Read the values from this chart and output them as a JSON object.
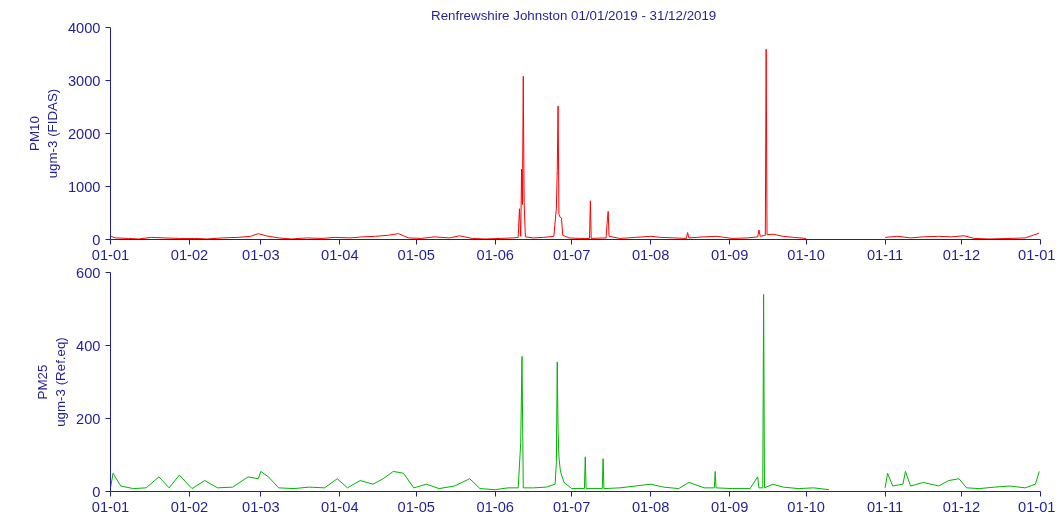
{
  "chart_data": [
    {
      "type": "line",
      "title": "Renfrewshire Johnston  01/01/2019 - 31/12/2019",
      "ylabel": "PM10\nugm-3 (FIDAS)",
      "xlim": [
        "2019-01-01",
        "2020-01-01"
      ],
      "ylim": [
        0,
        4000
      ],
      "yticks": [
        0,
        1000,
        2000,
        3000,
        4000
      ],
      "grid": false,
      "xticks": [
        {
          "value": "2019-01-01",
          "label": "01-01"
        },
        {
          "value": "2019-02-01",
          "label": "01-02"
        },
        {
          "value": "2019-03-01",
          "label": "01-03"
        },
        {
          "value": "2019-04-01",
          "label": "01-04"
        },
        {
          "value": "2019-05-01",
          "label": "01-05"
        },
        {
          "value": "2019-06-01",
          "label": "01-06"
        },
        {
          "value": "2019-07-01",
          "label": "01-07"
        },
        {
          "value": "2019-08-01",
          "label": "01-08"
        },
        {
          "value": "2019-09-01",
          "label": "01-09"
        },
        {
          "value": "2019-10-01",
          "label": "01-10"
        },
        {
          "value": "2019-11-01",
          "label": "01-11"
        },
        {
          "value": "2019-12-01",
          "label": "01-12"
        },
        {
          "value": "2020-01-01",
          "label": "01-01"
        }
      ],
      "series": [
        {
          "color": "#ff0000",
          "x": [
            "2019-01-01",
            "2019-01-03",
            "2019-01-08",
            "2019-01-12",
            "2019-01-17",
            "2019-01-22",
            "2019-01-28",
            "2019-02-03",
            "2019-02-08",
            "2019-02-14",
            "2019-02-20",
            "2019-02-25",
            "2019-02-28",
            "2019-03-03",
            "2019-03-08",
            "2019-03-13",
            "2019-03-19",
            "2019-03-25",
            "2019-03-30",
            "2019-04-05",
            "2019-04-10",
            "2019-04-15",
            "2019-04-20",
            "2019-04-24",
            "2019-04-28",
            "2019-05-03",
            "2019-05-08",
            "2019-05-14",
            "2019-05-18",
            "2019-05-23",
            "2019-05-28",
            "2019-06-03",
            "2019-06-08",
            "2019-06-10T00:00",
            "2019-06-10T12:00",
            "2019-06-11T00:00",
            "2019-06-11T08:00",
            "2019-06-11T16:00",
            "2019-06-12T00:00",
            "2019-06-12T08:00",
            "2019-06-12T20:00",
            "2019-06-16",
            "2019-06-20",
            "2019-06-24",
            "2019-06-25T00:00",
            "2019-06-25T08:00",
            "2019-06-25T16:00",
            "2019-06-26T00:00",
            "2019-06-26T12:00",
            "2019-06-27T00:00",
            "2019-06-27T12:00",
            "2019-06-30",
            "2019-07-04",
            "2019-07-08T00:00",
            "2019-07-08T08:00",
            "2019-07-08T16:00",
            "2019-07-14T12:00",
            "2019-07-15T00:00",
            "2019-07-15T08:00",
            "2019-07-15T16:00",
            "2019-07-20",
            "2019-07-26",
            "2019-08-01",
            "2019-08-05",
            "2019-08-10",
            "2019-08-15T00:00",
            "2019-08-15T12:00",
            "2019-08-16",
            "2019-08-22",
            "2019-08-27",
            "2019-09-02",
            "2019-09-08",
            "2019-09-12T00:00",
            "2019-09-12T12:00",
            "2019-09-13",
            "2019-09-15T00:00",
            "2019-09-15T08:00",
            "2019-09-15T16:00",
            "2019-09-18",
            "2019-09-22",
            "2019-09-26",
            "2019-10-01",
            "2019-10-03",
            "2019-10-30",
            "2019-11-01",
            "2019-11-06",
            "2019-11-11",
            "2019-11-16",
            "2019-11-22",
            "2019-11-27",
            "2019-12-02",
            "2019-12-06",
            "2019-12-12",
            "2019-12-20",
            "2019-12-26",
            "2019-12-31T12:00"
          ],
          "values": [
            60,
            30,
            20,
            10,
            40,
            30,
            20,
            20,
            10,
            30,
            40,
            60,
            110,
            70,
            30,
            10,
            30,
            20,
            40,
            30,
            50,
            60,
            80,
            110,
            30,
            20,
            50,
            30,
            70,
            20,
            10,
            20,
            30,
            40,
            580,
            60,
            1330,
            660,
            3080,
            700,
            50,
            30,
            40,
            60,
            590,
            1300,
            2520,
            470,
            420,
            400,
            80,
            30,
            20,
            20,
            730,
            20,
            30,
            370,
            530,
            60,
            20,
            40,
            60,
            40,
            30,
            20,
            130,
            30,
            50,
            60,
            20,
            30,
            50,
            180,
            60,
            80,
            3590,
            90,
            100,
            60,
            40,
            20,
            null,
            null,
            40,
            60,
            30,
            50,
            60,
            50,
            70,
            20,
            10,
            20,
            30,
            120
          ]
        }
      ]
    },
    {
      "type": "line",
      "ylabel": "PM25\nugm-3 (Ref.eq)",
      "xlim": [
        "2019-01-01",
        "2020-01-01"
      ],
      "ylim": [
        0,
        600
      ],
      "yticks": [
        0,
        200,
        400,
        600
      ],
      "grid": false,
      "xticks": [
        {
          "value": "2019-01-01",
          "label": "01-01"
        },
        {
          "value": "2019-02-01",
          "label": "01-02"
        },
        {
          "value": "2019-03-01",
          "label": "01-03"
        },
        {
          "value": "2019-04-01",
          "label": "01-04"
        },
        {
          "value": "2019-05-01",
          "label": "01-05"
        },
        {
          "value": "2019-06-01",
          "label": "01-06"
        },
        {
          "value": "2019-07-01",
          "label": "01-07"
        },
        {
          "value": "2019-08-01",
          "label": "01-08"
        },
        {
          "value": "2019-09-01",
          "label": "01-09"
        },
        {
          "value": "2019-10-01",
          "label": "01-10"
        },
        {
          "value": "2019-11-01",
          "label": "01-11"
        },
        {
          "value": "2019-12-01",
          "label": "01-12"
        },
        {
          "value": "2020-01-01",
          "label": "01-01"
        }
      ],
      "series": [
        {
          "color": "#00b400",
          "x": [
            "2019-01-01",
            "2019-01-02",
            "2019-01-05",
            "2019-01-10",
            "2019-01-15",
            "2019-01-20",
            "2019-01-24",
            "2019-01-28",
            "2019-02-02",
            "2019-02-07",
            "2019-02-12",
            "2019-02-18",
            "2019-02-24",
            "2019-02-28",
            "2019-03-01",
            "2019-03-04",
            "2019-03-08",
            "2019-03-14",
            "2019-03-20",
            "2019-03-26",
            "2019-03-31",
            "2019-04-04",
            "2019-04-09",
            "2019-04-14",
            "2019-04-18",
            "2019-04-22",
            "2019-04-26",
            "2019-04-30",
            "2019-05-05",
            "2019-05-10",
            "2019-05-16",
            "2019-05-22",
            "2019-05-26",
            "2019-06-01",
            "2019-06-06",
            "2019-06-10T00:00",
            "2019-06-10T12:00",
            "2019-06-11T00:00",
            "2019-06-11T12:00",
            "2019-06-12T00:00",
            "2019-06-16",
            "2019-06-21",
            "2019-06-24T12:00",
            "2019-06-25T00:00",
            "2019-06-25T08:00",
            "2019-06-25T16:00",
            "2019-06-26T00:00",
            "2019-06-26T12:00",
            "2019-06-27T00:00",
            "2019-06-28",
            "2019-07-01",
            "2019-07-06T00:00",
            "2019-07-06T08:00",
            "2019-07-06T16:00",
            "2019-07-13T00:00",
            "2019-07-13T08:00",
            "2019-07-13T16:00",
            "2019-07-20",
            "2019-07-26",
            "2019-08-01",
            "2019-08-06",
            "2019-08-12",
            "2019-08-16",
            "2019-08-22",
            "2019-08-26T00:00",
            "2019-08-26T08:00",
            "2019-08-26T16:00",
            "2019-09-02",
            "2019-09-09",
            "2019-09-12T00:00",
            "2019-09-12T12:00",
            "2019-09-14T00:00",
            "2019-09-14T08:00",
            "2019-09-14T16:00",
            "2019-09-18",
            "2019-09-22",
            "2019-09-28",
            "2019-10-04",
            "2019-10-10",
            "2019-10-12",
            "2019-10-31",
            "2019-11-01",
            "2019-11-02",
            "2019-11-04",
            "2019-11-08",
            "2019-11-09",
            "2019-11-11",
            "2019-11-16",
            "2019-11-22",
            "2019-11-26",
            "2019-11-30",
            "2019-12-03",
            "2019-12-08",
            "2019-12-14",
            "2019-12-20",
            "2019-12-26",
            "2019-12-30",
            "2019-12-31T12:00"
          ],
          "values": [
            10,
            50,
            15,
            8,
            10,
            40,
            10,
            45,
            8,
            30,
            10,
            12,
            40,
            35,
            55,
            40,
            10,
            8,
            12,
            10,
            35,
            10,
            30,
            20,
            35,
            55,
            50,
            10,
            20,
            8,
            15,
            35,
            8,
            5,
            10,
            10,
            70,
            135,
            370,
            10,
            10,
            12,
            20,
            80,
            355,
            165,
            95,
            60,
            45,
            25,
            8,
            8,
            95,
            8,
            8,
            90,
            8,
            10,
            15,
            20,
            12,
            8,
            25,
            10,
            10,
            55,
            10,
            8,
            8,
            40,
            10,
            10,
            540,
            10,
            20,
            12,
            8,
            10,
            5,
            null,
            null,
            10,
            50,
            15,
            20,
            55,
            15,
            25,
            15,
            30,
            35,
            10,
            8,
            12,
            15,
            10,
            20,
            55
          ]
        }
      ]
    }
  ]
}
